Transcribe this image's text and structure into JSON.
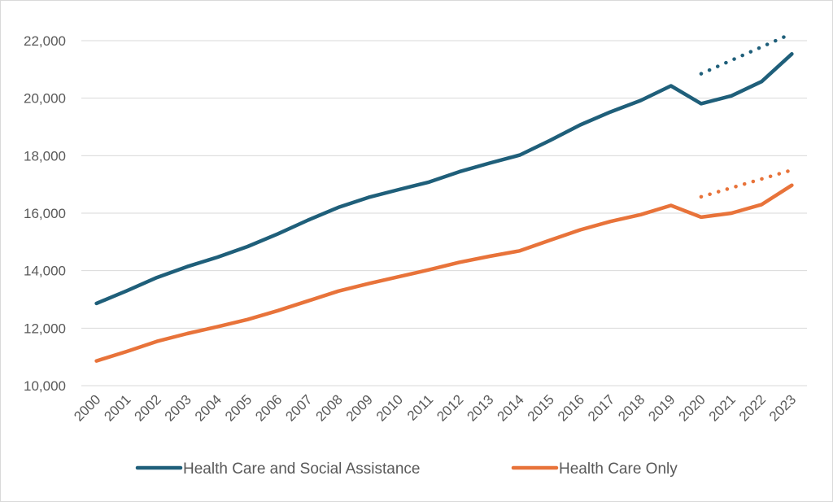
{
  "chart_data": {
    "type": "line",
    "title": "",
    "xlabel": "",
    "ylabel": "",
    "categories": [
      "2000",
      "2001",
      "2002",
      "2003",
      "2004",
      "2005",
      "2006",
      "2007",
      "2008",
      "2009",
      "2010",
      "2011",
      "2012",
      "2013",
      "2014",
      "2015",
      "2016",
      "2017",
      "2018",
      "2019",
      "2020",
      "2021",
      "2022",
      "2023"
    ],
    "ylim": [
      10000,
      22000
    ],
    "yticks": [
      "10,000",
      "12,000",
      "14,000",
      "16,000",
      "18,000",
      "20,000",
      "22,000"
    ],
    "grid": true,
    "legend_position": "bottom",
    "series": [
      {
        "name": "Health Care and Social Assistance",
        "color": "#1f5f7a",
        "values": [
          12860,
          13300,
          13760,
          14140,
          14470,
          14840,
          15280,
          15760,
          16200,
          16550,
          16820,
          17080,
          17440,
          17740,
          18020,
          18530,
          19070,
          19520,
          19920,
          20430,
          19810,
          20080,
          20580,
          21540
        ]
      },
      {
        "name": "Health Care Only",
        "color": "#e8733a",
        "values": [
          10860,
          11190,
          11540,
          11810,
          12050,
          12300,
          12610,
          12950,
          13290,
          13550,
          13790,
          14030,
          14290,
          14500,
          14690,
          15060,
          15420,
          15710,
          15950,
          16270,
          15860,
          16000,
          16300,
          16970
        ]
      }
    ],
    "trend_lines": [
      {
        "series": "Health Care and Social Assistance",
        "color": "#1f5f7a",
        "x": [
          "2020",
          "2023"
        ],
        "values": [
          20850,
          22250
        ]
      },
      {
        "series": "Health Care Only",
        "color": "#e8733a",
        "x": [
          "2020",
          "2023"
        ],
        "values": [
          16570,
          17500
        ]
      }
    ]
  }
}
